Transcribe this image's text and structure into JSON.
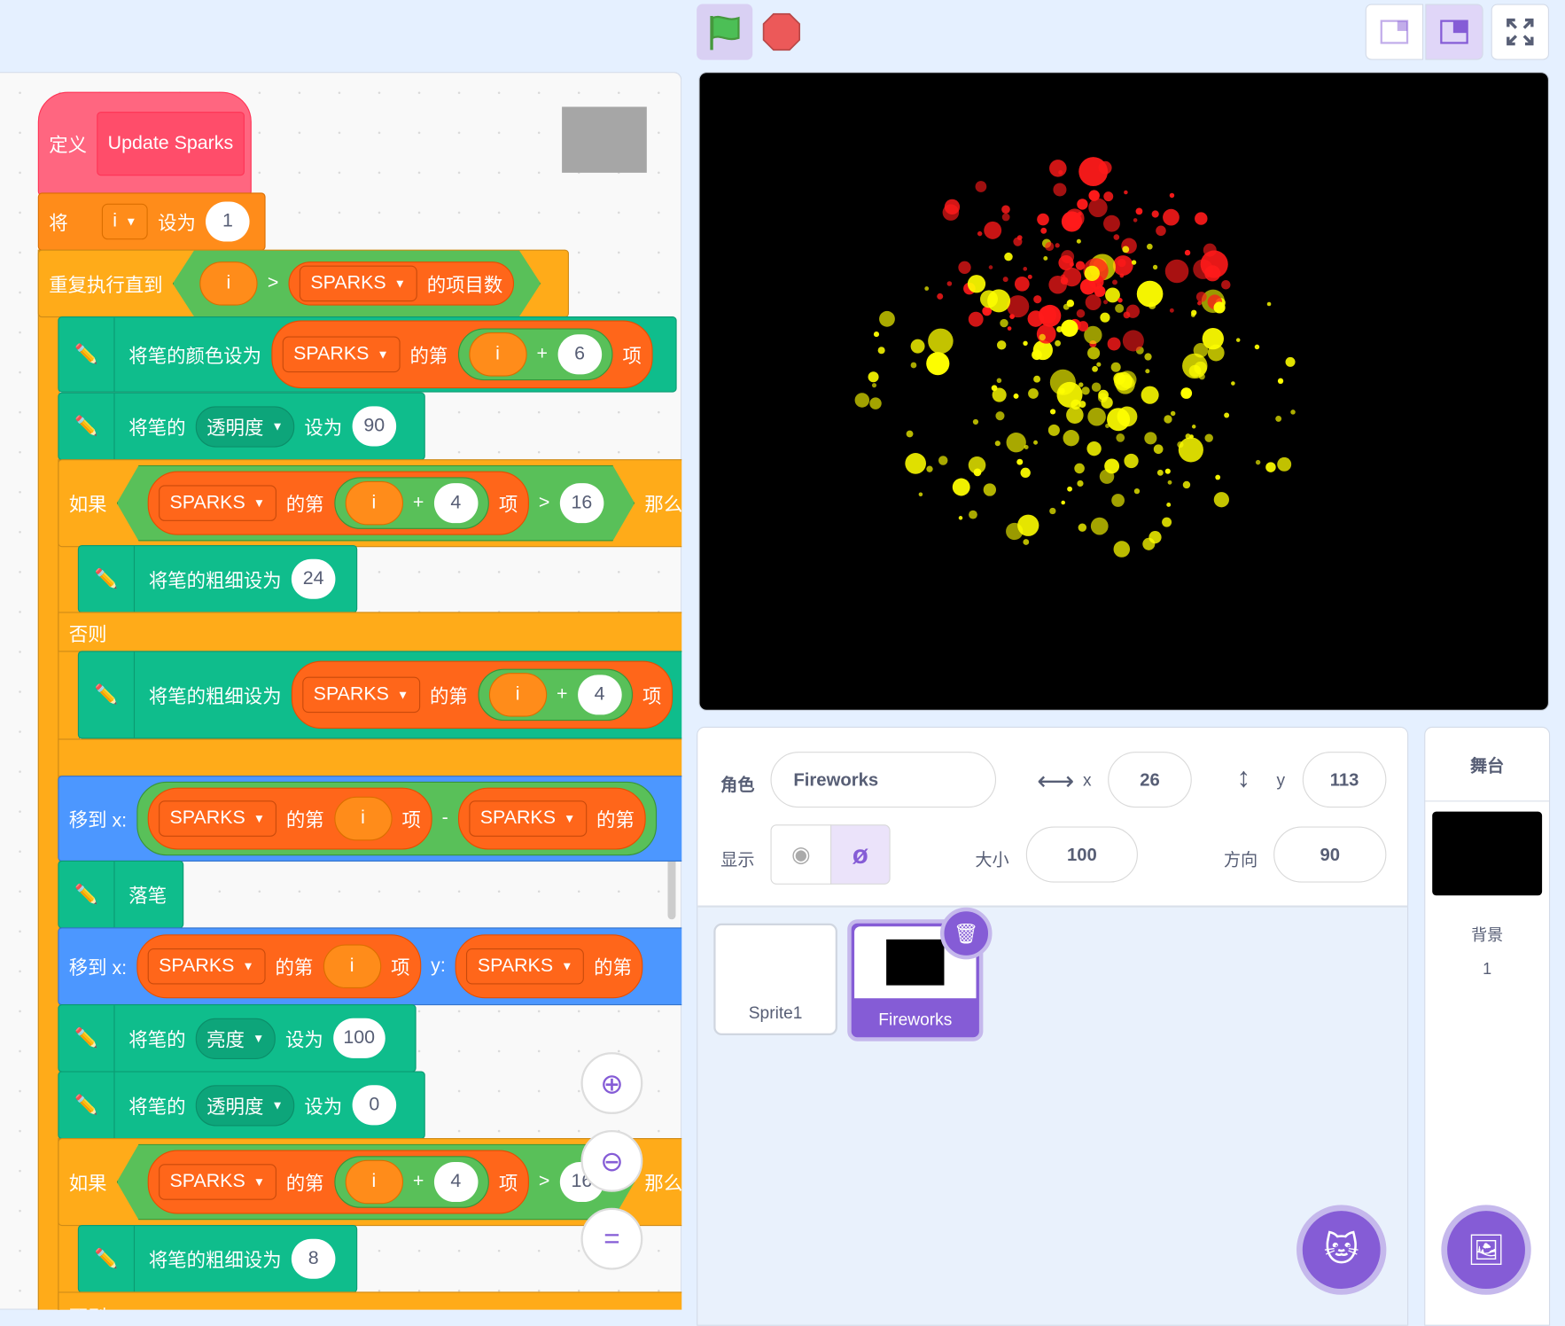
{
  "toolbar": {
    "green_flag": "green-flag",
    "stop": "stop",
    "small_stage": "small-stage",
    "normal_stage": "normal-stage",
    "fullscreen": "fullscreen"
  },
  "blocks": {
    "define": "定义",
    "define_name": "Update Sparks",
    "set": "将",
    "set_var": "i",
    "set_to": "设为",
    "set_val": "1",
    "repeat_until": "重复执行直到",
    "gt": ">",
    "item_count": "的项目数",
    "list": "SPARKS",
    "var_i": "i",
    "plus": "+",
    "minus": "-",
    "item_of": "的第",
    "item": "项",
    "pen_color": "将笔的颜色设为",
    "six": "6",
    "pen_of": "将笔的",
    "transparency": "透明度",
    "set_to2": "设为",
    "t90": "90",
    "if": "如果",
    "four": "4",
    "sixteen": "16",
    "then": "那么",
    "pen_size": "将笔的粗细设为",
    "s24": "24",
    "else": "否则",
    "goto_x": "移到 x:",
    "y": "y:",
    "pen_down": "落笔",
    "brightness": "亮度",
    "b100": "100",
    "t0": "0",
    "s8": "8"
  },
  "sprite_info": {
    "sprite_label": "角色",
    "sprite_name": "Fireworks",
    "x_label": "x",
    "x": "26",
    "y_label": "y",
    "y": "113",
    "show_label": "显示",
    "size_label": "大小",
    "size": "100",
    "direction_label": "方向",
    "direction": "90",
    "visible": false
  },
  "sprites": [
    {
      "name": "Sprite1",
      "selected": false
    },
    {
      "name": "Fireworks",
      "selected": true
    }
  ],
  "stage_pane": {
    "title": "舞台",
    "backdrops_label": "背景",
    "backdrop_count": "1"
  },
  "colors": {
    "accent": "#855cd6",
    "pen": "#0fbd8c",
    "control": "#ffab19",
    "variables": "#ff8c1a",
    "lists": "#ff661a",
    "operators": "#59c059",
    "motion": "#4c97ff",
    "define": "#ff6680"
  }
}
